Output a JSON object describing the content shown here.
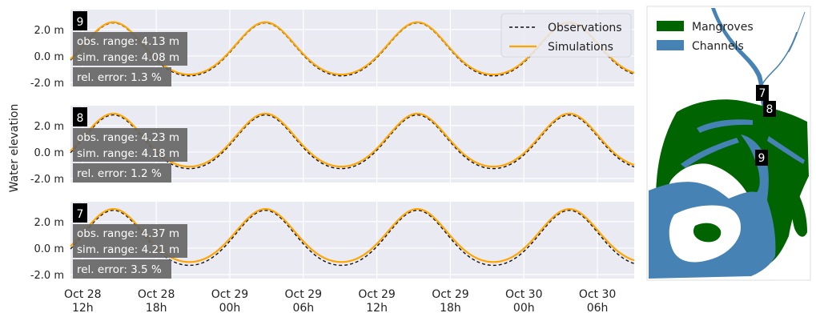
{
  "chart_data": {
    "type": "line",
    "ylabel": "Water elevation",
    "y_ticks": [
      "2.0 m",
      "0.0 m",
      "-2.0 m"
    ],
    "ylim": [
      -2.3,
      3.5
    ],
    "x_ticks": [
      {
        "line1": "Oct 28",
        "line2": "12h"
      },
      {
        "line1": "Oct 28",
        "line2": "18h"
      },
      {
        "line1": "Oct 29",
        "line2": "00h"
      },
      {
        "line1": "Oct 29",
        "line2": "06h"
      },
      {
        "line1": "Oct 29",
        "line2": "12h"
      },
      {
        "line1": "Oct 29",
        "line2": "18h"
      },
      {
        "line1": "Oct 30",
        "line2": "00h"
      },
      {
        "line1": "Oct 30",
        "line2": "06h"
      }
    ],
    "legend": {
      "position": "top-right",
      "entries": [
        {
          "label": "Observations",
          "style": "dashed",
          "color": "#111111"
        },
        {
          "label": "Simulations",
          "style": "solid",
          "color": "#ffa500"
        }
      ]
    },
    "colors": {
      "panel_bg": "#eaeaf2",
      "grid": "#ffffff",
      "observations": "#111111",
      "simulations": "#ffa500",
      "mangroves": "#006400",
      "channels": "#4682b4"
    },
    "panels": [
      {
        "station": "9",
        "stats": [
          "obs. range: 4.13 m",
          "sim. range: 4.08 m",
          "rel. error: 1.3 %"
        ],
        "tide": {
          "t0": 3.5,
          "period": 12.4,
          "sim_high": 2.55,
          "sim_low": -1.4,
          "obs_high": 2.5,
          "obs_low": -1.5
        }
      },
      {
        "station": "8",
        "stats": [
          "obs. range: 4.23 m",
          "sim. range: 4.18 m",
          "rel. error: 1.2 %"
        ],
        "tide": {
          "t0": 3.5,
          "period": 12.4,
          "sim_high": 2.9,
          "sim_low": -1.1,
          "obs_high": 2.8,
          "obs_low": -1.25
        }
      },
      {
        "station": "7",
        "stats": [
          "obs. range: 4.37 m",
          "sim. range: 4.21 m",
          "rel. error: 3.5 %"
        ],
        "tide": {
          "t0": 3.5,
          "period": 12.4,
          "sim_high": 2.95,
          "sim_low": -1.05,
          "obs_high": 2.85,
          "obs_low": -1.3
        }
      }
    ]
  },
  "map": {
    "legend": [
      {
        "label": "Mangroves",
        "color": "#006400"
      },
      {
        "label": "Channels",
        "color": "#4682b4"
      }
    ],
    "stations": [
      "7",
      "8",
      "9"
    ]
  }
}
